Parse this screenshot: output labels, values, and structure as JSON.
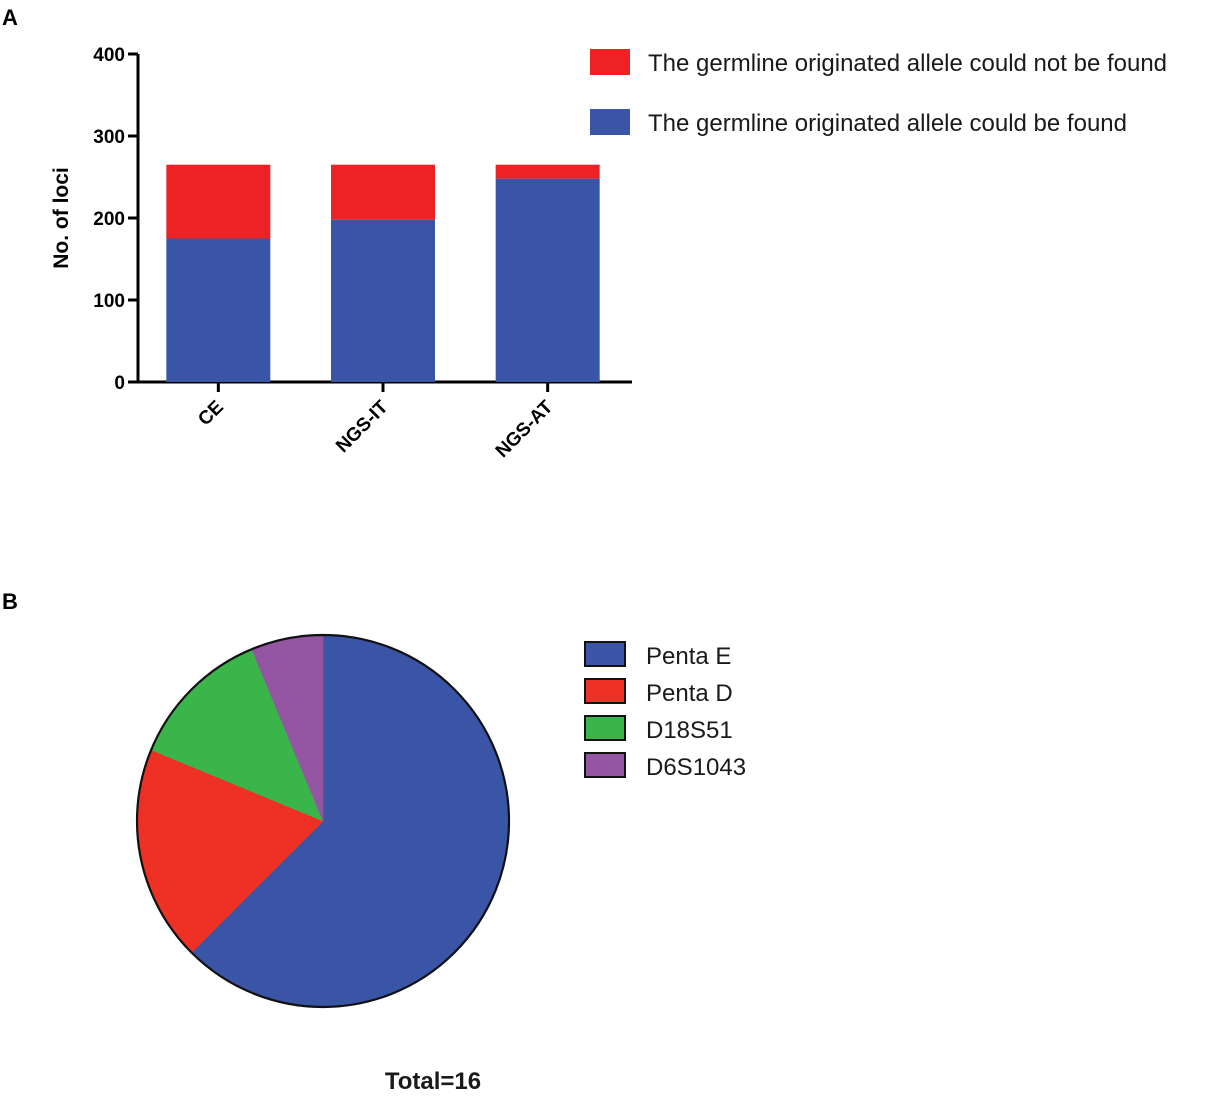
{
  "panels": {
    "a_label": "A",
    "b_label": "B"
  },
  "chart_data": [
    {
      "type": "bar",
      "stacked": true,
      "categories": [
        "CE",
        "NGS-IT",
        "NGS-AT"
      ],
      "series": [
        {
          "name": "The germline originated allele could be found",
          "values": [
            175,
            198,
            248
          ],
          "color": "#3a55a5"
        },
        {
          "name": "The germline originated allele could not be found",
          "values": [
            90,
            67,
            17
          ],
          "color": "#ed2224"
        }
      ],
      "legend_order": [
        1,
        0
      ],
      "legend_position": "top-right",
      "xlabel": "",
      "ylabel": "No. of loci",
      "ylim": [
        0,
        400
      ],
      "yticks": [
        0,
        100,
        200,
        300,
        400
      ],
      "grid": false
    },
    {
      "type": "pie",
      "labels": [
        "Penta E",
        "Penta D",
        "D18S51",
        "D6S1043"
      ],
      "values": [
        10,
        3,
        2,
        1
      ],
      "colors": [
        "#3a55a5",
        "#ee3124",
        "#3ab54a",
        "#9455a3"
      ],
      "legend_position": "right",
      "annotation": "Total=16"
    }
  ]
}
